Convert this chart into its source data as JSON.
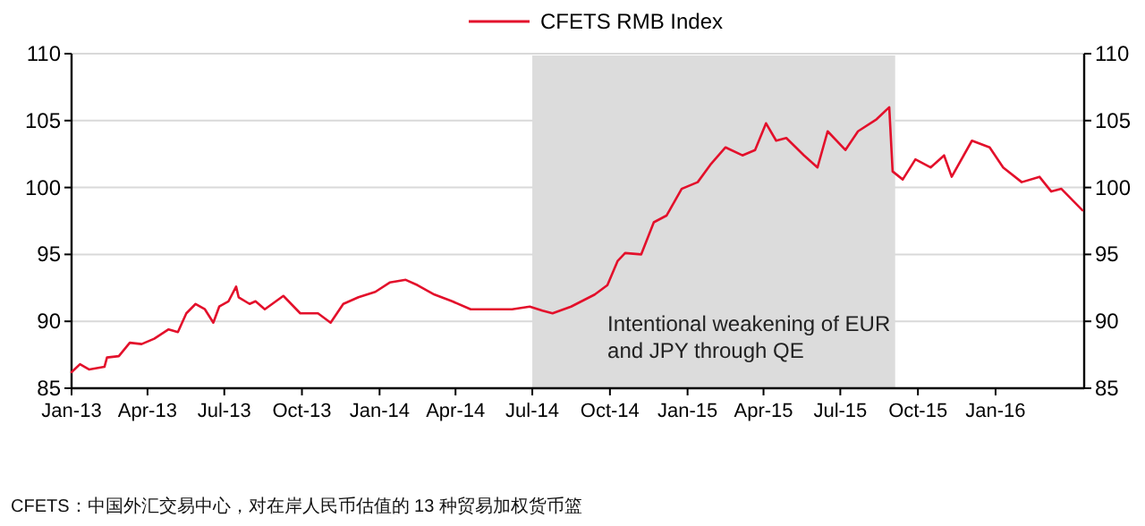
{
  "chart_data": {
    "type": "line",
    "x": [
      "2013-01-01",
      "2013-01-11",
      "2013-01-22",
      "2013-02-09",
      "2013-02-12",
      "2013-02-26",
      "2013-03-11",
      "2013-03-25",
      "2013-04-09",
      "2013-04-26",
      "2013-05-07",
      "2013-05-17",
      "2013-05-28",
      "2013-06-08",
      "2013-06-18",
      "2013-06-25",
      "2013-07-06",
      "2013-07-15",
      "2013-07-18",
      "2013-07-31",
      "2013-08-07",
      "2013-08-18",
      "2013-09-09",
      "2013-09-29",
      "2013-10-20",
      "2013-11-04",
      "2013-11-19",
      "2013-12-07",
      "2013-12-27",
      "2014-01-13",
      "2014-02-01",
      "2014-02-15",
      "2014-03-07",
      "2014-03-28",
      "2014-04-19",
      "2014-05-16",
      "2014-06-07",
      "2014-06-28",
      "2014-07-13",
      "2014-07-25",
      "2014-08-16",
      "2014-09-13",
      "2014-09-28",
      "2014-10-10",
      "2014-10-19",
      "2014-11-07",
      "2014-11-22",
      "2014-12-07",
      "2014-12-25",
      "2015-01-13",
      "2015-01-28",
      "2015-02-15",
      "2015-03-07",
      "2015-03-22",
      "2015-04-04",
      "2015-04-16",
      "2015-04-28",
      "2015-05-19",
      "2015-06-04",
      "2015-06-16",
      "2015-07-07",
      "2015-07-22",
      "2015-08-13",
      "2015-08-28",
      "2015-09-01",
      "2015-09-13",
      "2015-09-28",
      "2015-10-16",
      "2015-11-01",
      "2015-11-10",
      "2015-12-04",
      "2015-12-25",
      "2016-01-10",
      "2016-02-01",
      "2016-02-22",
      "2016-03-07",
      "2016-03-19",
      "2016-04-13"
    ],
    "series": [
      {
        "name": "CFETS RMB Index",
        "color": "#e3102b",
        "values": [
          86.2,
          86.8,
          86.4,
          86.6,
          87.3,
          87.4,
          88.4,
          88.3,
          88.7,
          89.4,
          89.2,
          90.6,
          91.3,
          90.9,
          89.9,
          91.1,
          91.5,
          92.6,
          91.8,
          91.3,
          91.5,
          90.9,
          91.9,
          90.6,
          90.6,
          89.9,
          91.3,
          91.8,
          92.2,
          92.9,
          93.1,
          92.7,
          92.0,
          91.5,
          90.9,
          90.9,
          90.9,
          91.1,
          90.8,
          90.6,
          91.1,
          92.0,
          92.7,
          94.5,
          95.1,
          95.0,
          97.4,
          97.9,
          99.9,
          100.4,
          101.7,
          103.0,
          102.4,
          102.8,
          104.8,
          103.5,
          103.7,
          102.4,
          101.5,
          104.2,
          102.8,
          104.2,
          105.1,
          106.0,
          101.2,
          100.6,
          102.1,
          101.5,
          102.4,
          100.8,
          103.5,
          103.0,
          101.5,
          100.4,
          100.8,
          99.7,
          99.9,
          98.3
        ]
      }
    ],
    "xlim": [
      "2013-01-01",
      "2016-04-15"
    ],
    "xticks": [
      {
        "value": "2013-01-01",
        "label": "Jan-13"
      },
      {
        "value": "2013-04-01",
        "label": "Apr-13"
      },
      {
        "value": "2013-07-01",
        "label": "Jul-13"
      },
      {
        "value": "2013-10-01",
        "label": "Oct-13"
      },
      {
        "value": "2014-01-01",
        "label": "Jan-14"
      },
      {
        "value": "2014-04-01",
        "label": "Apr-14"
      },
      {
        "value": "2014-07-01",
        "label": "Jul-14"
      },
      {
        "value": "2014-10-01",
        "label": "Oct-14"
      },
      {
        "value": "2015-01-01",
        "label": "Jan-15"
      },
      {
        "value": "2015-04-01",
        "label": "Apr-15"
      },
      {
        "value": "2015-07-01",
        "label": "Jul-15"
      },
      {
        "value": "2015-10-01",
        "label": "Oct-15"
      },
      {
        "value": "2016-01-01",
        "label": "Jan-16"
      }
    ],
    "ylim": [
      85,
      110
    ],
    "yticks": [
      85,
      90,
      95,
      100,
      105,
      110
    ],
    "y2lim": [
      85,
      110
    ],
    "y2ticks": [
      85,
      90,
      95,
      100,
      105,
      110
    ],
    "bands": [
      {
        "axis": "x",
        "from": "2014-07-01",
        "to": "2015-09-04",
        "label": "Intentional weakening of EUR and JPY through QE",
        "color": "#dcdcdc"
      }
    ],
    "annotations": [
      "CFETS：中国外汇交易中心，对在岸人民币估值的 13 种贸易加权货币篮"
    ],
    "grid": "y",
    "legend": "top",
    "marker": "none",
    "line_style": "solid"
  }
}
